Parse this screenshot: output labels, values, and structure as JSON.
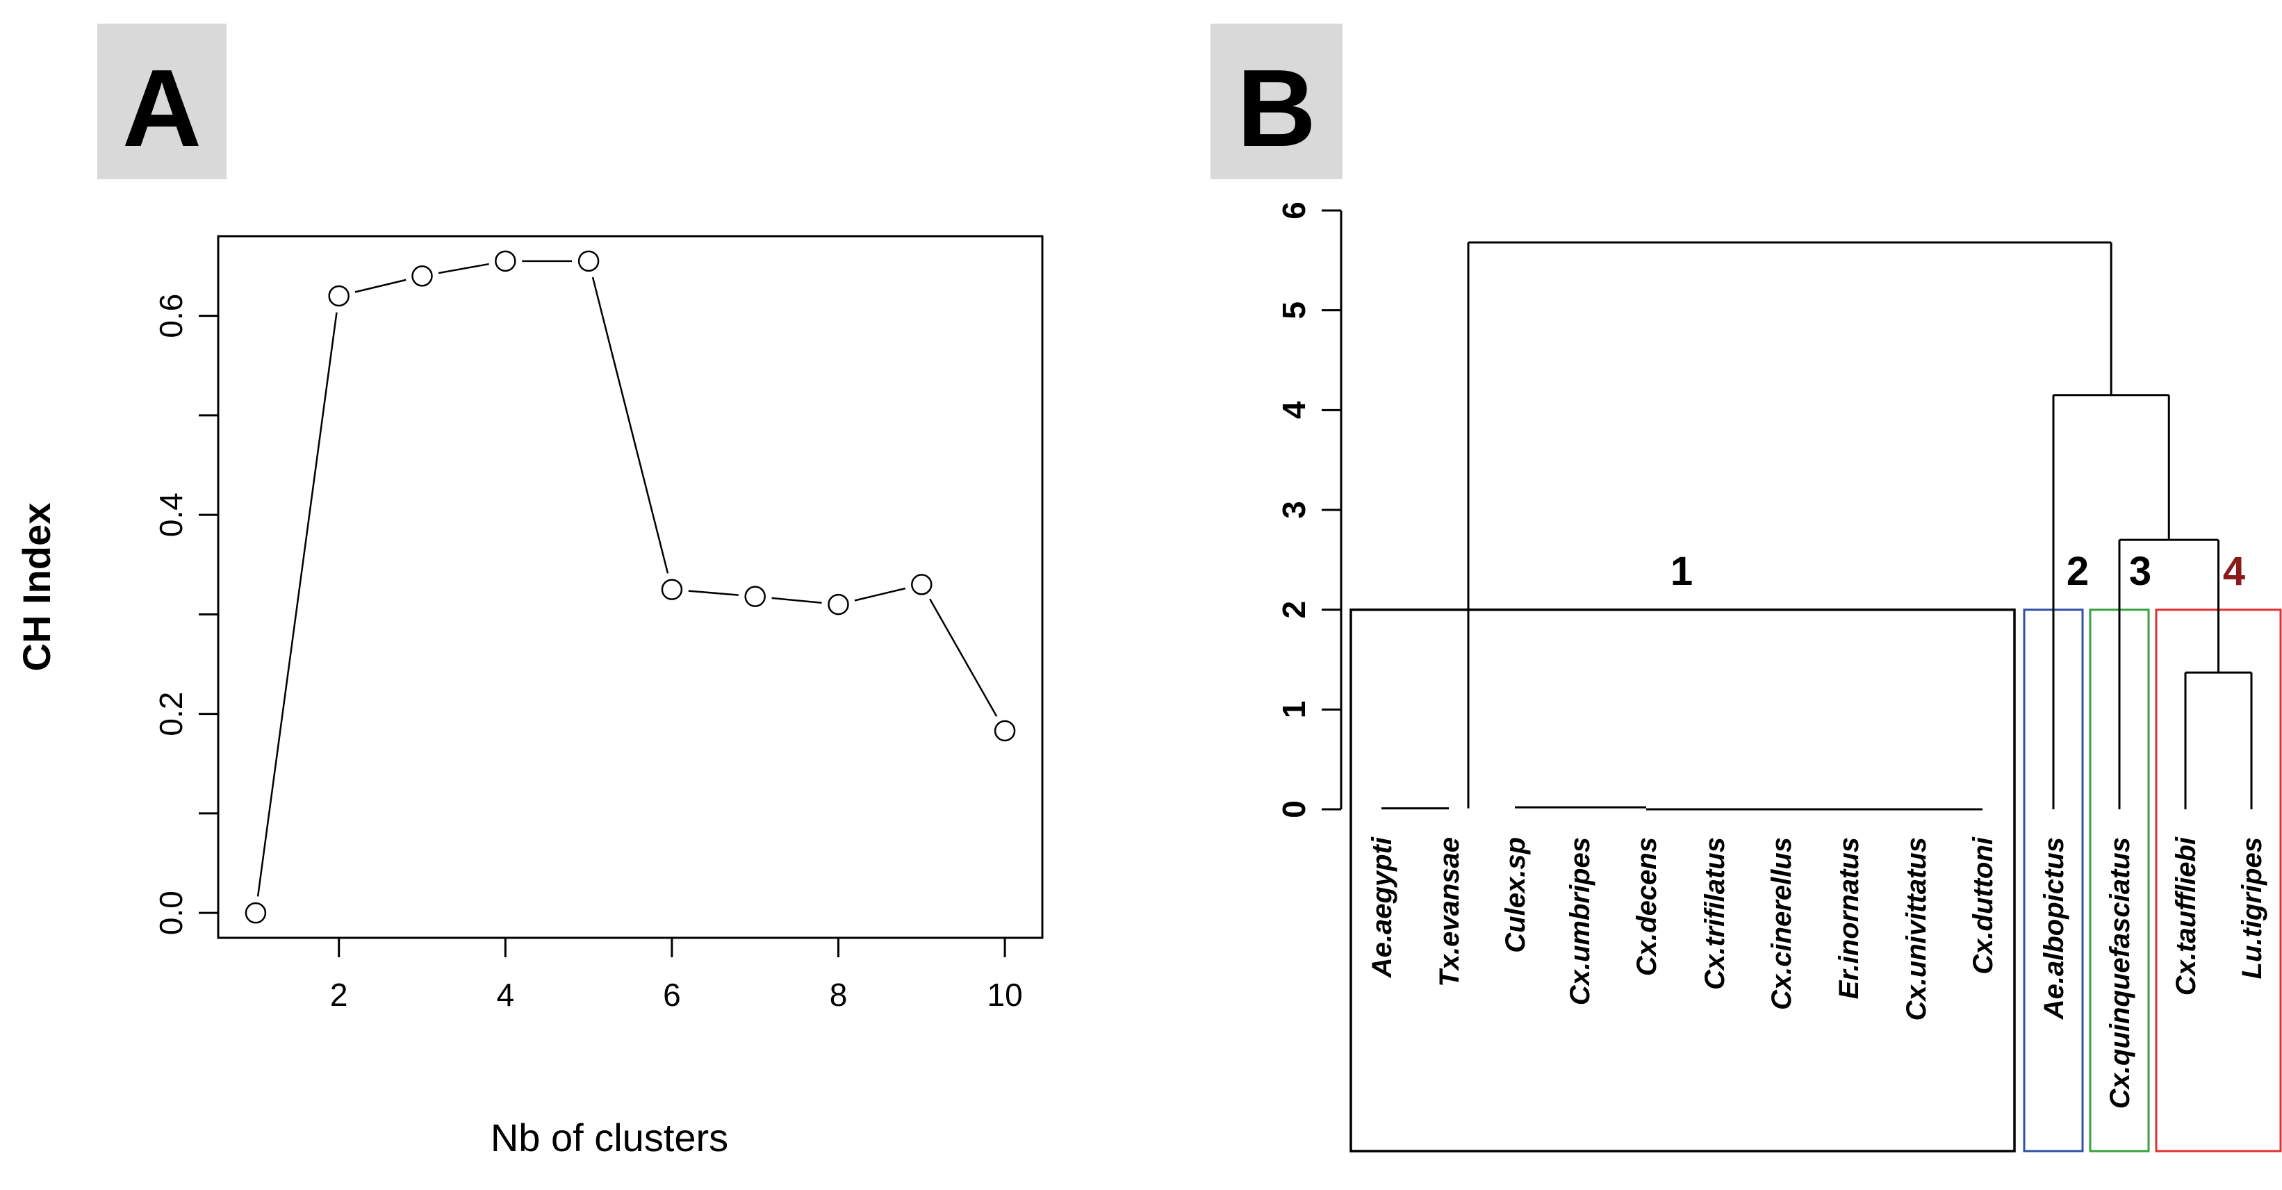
{
  "chart_data": [
    {
      "panel": "A",
      "type": "line",
      "xlabel": "Nb of clusters",
      "ylabel": "CH Index",
      "x": [
        1,
        2,
        3,
        4,
        5,
        6,
        7,
        8,
        9,
        10
      ],
      "y": [
        0.0,
        0.62,
        0.64,
        0.655,
        0.655,
        0.325,
        0.318,
        0.31,
        0.33,
        0.183
      ],
      "xlim": [
        0.55,
        10.45
      ],
      "ylim": [
        -0.025,
        0.68
      ],
      "xticks": [
        2,
        4,
        6,
        8,
        10
      ],
      "yticks": [
        0.0,
        0.2,
        0.4,
        0.6
      ],
      "xtick_labels": [
        "2",
        "4",
        "6",
        "8",
        "10"
      ],
      "ytick_labels": [
        "0.0",
        "0.2",
        "0.4",
        "0.6"
      ],
      "marker": "open-circle",
      "grid": false
    },
    {
      "panel": "B",
      "type": "dendrogram",
      "ylim": [
        0,
        6
      ],
      "yticks": [
        0,
        1,
        2,
        3,
        4,
        5,
        6
      ],
      "ytick_labels": [
        "0",
        "1",
        "2",
        "3",
        "4",
        "5",
        "6"
      ],
      "leaves": [
        "Ae.aegypti",
        "Tx.evansae",
        "Culex.sp",
        "Cx.umbripes",
        "Cx.decens",
        "Cx.trifilatus",
        "Cx.cinerellus",
        "Er.inornatus",
        "Cx.univittatus",
        "Cx.duttoni",
        "Ae.albopictus",
        "Cx.quinquefasciatus",
        "Cx.tauffliebi",
        "Lu.tigripes"
      ],
      "merges": [
        {
          "left_leaves": [
            0,
            1
          ],
          "right_leaves": [],
          "height": 0.02
        },
        {
          "left_leaves": [
            2,
            3,
            4
          ],
          "right_leaves": [
            5,
            6,
            7,
            8,
            9
          ],
          "height": 0.03
        },
        {
          "left_leaves": [
            12
          ],
          "right_leaves": [
            13
          ],
          "height": 1.37
        },
        {
          "left_leaves": [
            11
          ],
          "right_leaves": [
            12,
            13
          ],
          "height": 2.7
        },
        {
          "left_leaves": [
            10
          ],
          "right_leaves": [
            11,
            12,
            13
          ],
          "height": 4.15
        },
        {
          "left_leaves": [
            0,
            1,
            2,
            3,
            4,
            5,
            6,
            7,
            8,
            9
          ],
          "right_leaves": [
            10,
            11,
            12,
            13
          ],
          "height": 5.68
        }
      ],
      "clusters": [
        {
          "label": "1",
          "first_leaf": 0,
          "last_leaf": 9,
          "color": "#000000"
        },
        {
          "label": "2",
          "first_leaf": 10,
          "last_leaf": 10,
          "color": "#3050a8"
        },
        {
          "label": "3",
          "first_leaf": 11,
          "last_leaf": 11,
          "color": "#3aa040"
        },
        {
          "label": "4",
          "first_leaf": 12,
          "last_leaf": 13,
          "color": "#e03030"
        }
      ],
      "cluster_label_colors": [
        "#000000",
        "#000000",
        "#000000",
        "#8b1a1a"
      ],
      "cluster_box_top": 2.0
    }
  ],
  "panels": {
    "a_letter": "A",
    "b_letter": "B",
    "letter_bg": "#d9d9d9"
  }
}
